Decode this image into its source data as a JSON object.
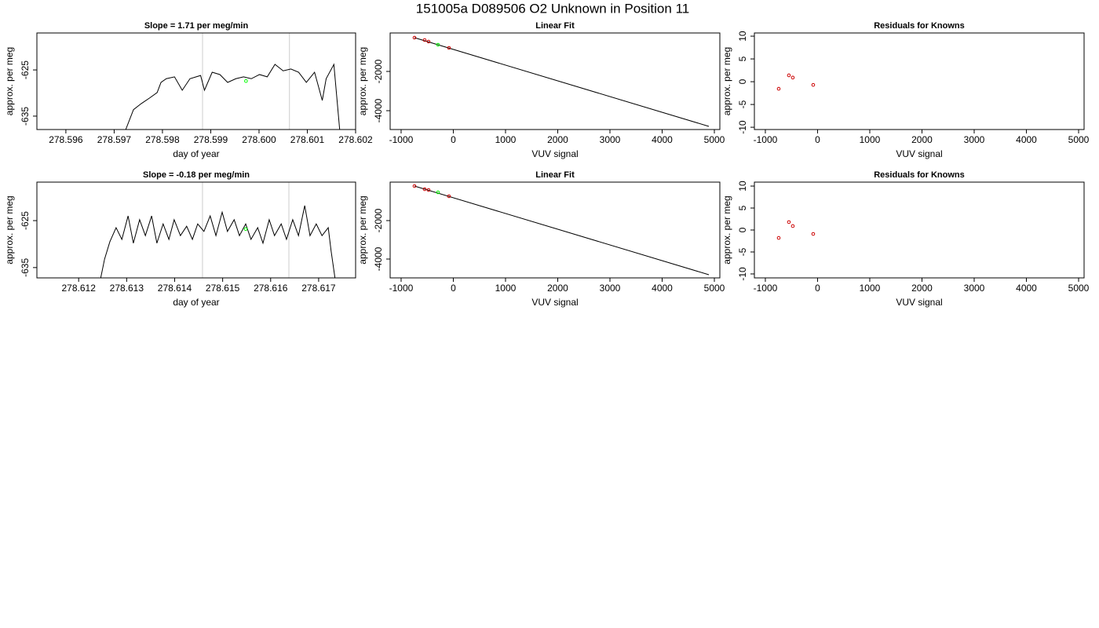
{
  "title": "151005a     D089506   O2 Unknown in Position  11",
  "chart_data": [
    {
      "type": "line",
      "title": "Slope =  1.71  per meg/min",
      "xlabel": "day of year",
      "ylabel": "approx. per meg",
      "xlim": [
        278.5954,
        278.602
      ],
      "ylim": [
        -637.9,
        -617.0
      ],
      "xticks": [
        278.596,
        278.597,
        278.598,
        278.599,
        278.6,
        278.601,
        278.602
      ],
      "xtick_labels": [
        "278.596",
        "278.597",
        "278.598",
        "278.599",
        "278.600",
        "278.601",
        "278.602"
      ],
      "yticks": [
        -625,
        -635
      ],
      "vlines": [
        278.59883,
        278.60063
      ],
      "vline_color": "#cccccc",
      "series": [
        {
          "type": "line",
          "color": "#000000",
          "x": [
            278.59724,
            278.5974,
            278.59756,
            278.59773,
            278.59789,
            278.59797,
            278.59808,
            278.59825,
            278.59841,
            278.59857,
            278.59879,
            278.59887,
            278.59903,
            278.59919,
            278.59935,
            278.59952,
            278.59968,
            278.59984,
            278.60001,
            278.60017,
            278.60033,
            278.6005,
            278.60066,
            278.60082,
            278.60098,
            278.60115,
            278.60131,
            278.60139,
            278.60155,
            278.60167
          ],
          "values": [
            -637.9,
            -633.6,
            -632.3,
            -631.1,
            -629.9,
            -627.7,
            -626.9,
            -626.5,
            -629.4,
            -626.9,
            -626.2,
            -629.4,
            -625.5,
            -626.0,
            -627.7,
            -626.9,
            -626.5,
            -626.9,
            -626.0,
            -626.5,
            -623.8,
            -625.2,
            -624.8,
            -625.5,
            -627.7,
            -625.5,
            -631.6,
            -626.9,
            -623.8,
            -637.9
          ]
        },
        {
          "type": "scatter",
          "color": "#00ff00",
          "x": [
            278.59973
          ],
          "values": [
            -627.4
          ]
        }
      ]
    },
    {
      "type": "scatter",
      "title": "Linear Fit",
      "xlabel": "VUV signal",
      "ylabel": "approx. per meg",
      "xlim": [
        -1210,
        5105
      ],
      "ylim": [
        -4960,
        -40
      ],
      "xticks": [
        -1000,
        0,
        1000,
        2000,
        3000,
        4000,
        5000
      ],
      "yticks": [
        -2000,
        -4000
      ],
      "series": [
        {
          "type": "line",
          "color": "#000000",
          "x": [
            -744,
            4895
          ],
          "values": [
            -280,
            -4800
          ]
        },
        {
          "type": "scatter",
          "color": "#cc0000",
          "x": [
            -744,
            -549,
            -474,
            -83
          ],
          "values": [
            -280,
            -400,
            -480,
            -800
          ]
        },
        {
          "type": "scatter",
          "color": "#00ff00",
          "x": [
            -293
          ],
          "values": [
            -640
          ]
        }
      ]
    },
    {
      "type": "scatter",
      "title": "Residuals for Knowns",
      "xlabel": "VUV signal",
      "ylabel": "approx. per meg",
      "xlim": [
        -1210,
        5105
      ],
      "ylim": [
        -10.5,
        10.7
      ],
      "xticks": [
        -1000,
        0,
        1000,
        2000,
        3000,
        4000,
        5000
      ],
      "yticks": [
        -10,
        -5,
        0,
        5,
        10
      ],
      "series": [
        {
          "type": "scatter",
          "color": "#cc0000",
          "x": [
            -744,
            -549,
            -474,
            -83
          ],
          "values": [
            -1.55,
            1.4,
            0.9,
            -0.7
          ]
        }
      ]
    },
    {
      "type": "line",
      "title": "Slope =  -0.18  per meg/min",
      "xlabel": "day of year",
      "ylabel": "approx. per meg",
      "xlim": [
        278.61113,
        278.61777
      ],
      "ylim": [
        -637.2,
        -616.8
      ],
      "xticks": [
        278.612,
        278.613,
        278.614,
        278.615,
        278.616,
        278.617
      ],
      "yticks": [
        -625,
        -635
      ],
      "vlines": [
        278.61458,
        278.61638
      ],
      "vline_color": "#cccccc",
      "series": [
        {
          "type": "line",
          "color": "#000000",
          "x": [
            278.61246,
            278.61254,
            278.61265,
            278.61278,
            278.6129,
            278.61303,
            278.61314,
            278.61327,
            278.61339,
            278.61352,
            278.61363,
            278.61376,
            278.61388,
            278.61399,
            278.61412,
            278.61425,
            278.61437,
            278.61448,
            278.61461,
            278.61474,
            278.61486,
            278.61499,
            278.6151,
            278.61524,
            278.61535,
            278.61548,
            278.61559,
            278.61573,
            278.61584,
            278.61597,
            278.61608,
            278.61622,
            278.61633,
            278.61646,
            278.61658,
            278.61671,
            278.61682,
            278.61695,
            278.61707,
            278.6172,
            278.61726,
            278.61734
          ],
          "values": [
            -637.2,
            -633.2,
            -629.5,
            -626.5,
            -629.0,
            -624.0,
            -629.8,
            -624.8,
            -628.2,
            -624.0,
            -629.8,
            -625.7,
            -629.0,
            -624.8,
            -628.2,
            -626.2,
            -629.0,
            -625.7,
            -627.3,
            -624.0,
            -628.2,
            -623.2,
            -627.3,
            -624.8,
            -628.2,
            -625.7,
            -629.0,
            -626.5,
            -629.8,
            -624.8,
            -628.2,
            -625.7,
            -629.0,
            -624.8,
            -628.2,
            -621.8,
            -628.2,
            -625.7,
            -628.2,
            -626.5,
            -631.5,
            -637.2
          ]
        },
        {
          "type": "scatter",
          "color": "#00ff00",
          "x": [
            278.61548
          ],
          "values": [
            -626.8
          ]
        }
      ]
    },
    {
      "type": "scatter",
      "title": "Linear Fit",
      "xlabel": "VUV signal",
      "ylabel": "approx. per meg",
      "xlim": [
        -1210,
        5105
      ],
      "ylim": [
        -4980,
        0
      ],
      "xticks": [
        -1000,
        0,
        1000,
        2000,
        3000,
        4000,
        5000
      ],
      "yticks": [
        -2000,
        -4000
      ],
      "series": [
        {
          "type": "line",
          "color": "#000000",
          "x": [
            -744,
            4895
          ],
          "values": [
            -205,
            -4816
          ]
        },
        {
          "type": "scatter",
          "color": "#cc0000",
          "x": [
            -744,
            -549,
            -474,
            -83
          ],
          "values": [
            -205,
            -368,
            -409,
            -735
          ]
        },
        {
          "type": "scatter",
          "color": "#00ff00",
          "x": [
            -293
          ],
          "values": [
            -531
          ]
        }
      ]
    },
    {
      "type": "scatter",
      "title": "Residuals for Knowns",
      "xlabel": "VUV signal",
      "ylabel": "approx. per meg",
      "xlim": [
        -1210,
        5105
      ],
      "ylim": [
        -10.9,
        10.9
      ],
      "xticks": [
        -1000,
        0,
        1000,
        2000,
        3000,
        4000,
        5000
      ],
      "yticks": [
        -10,
        -5,
        0,
        5,
        10
      ],
      "series": [
        {
          "type": "scatter",
          "color": "#cc0000",
          "x": [
            -744,
            -549,
            -474,
            -83
          ],
          "values": [
            -1.8,
            1.8,
            0.9,
            -0.9
          ]
        }
      ]
    }
  ]
}
